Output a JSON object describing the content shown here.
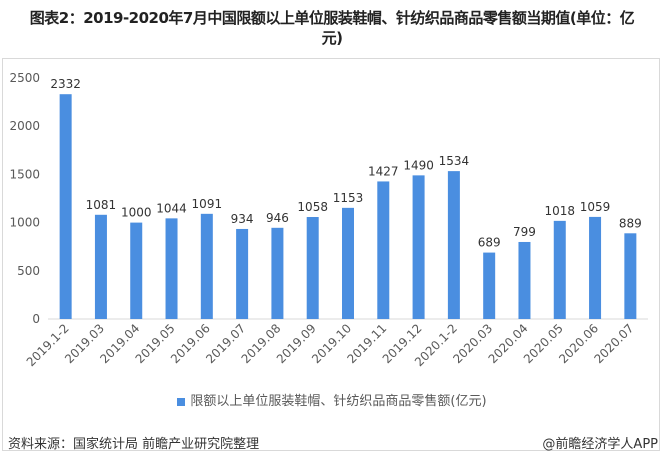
{
  "title": "图表2：2019-2020年7月中国限额以上单位服装鞋帽、针纺织品商品零售额当期值(单位：亿元)",
  "chart_data": {
    "type": "bar",
    "title": "图表2：2019-2020年7月中国限额以上单位服装鞋帽、针纺织品商品零售额当期值(单位：亿元)",
    "categories": [
      "2019.1-2",
      "2019.03",
      "2019.04",
      "2019.05",
      "2019.06",
      "2019.07",
      "2019.08",
      "2019.09",
      "2019.10",
      "2019.11",
      "2019.12",
      "2020.1-2",
      "2020.03",
      "2020.04",
      "2020.05",
      "2020.06",
      "2020.07"
    ],
    "series": [
      {
        "name": "限额以上单位服装鞋帽、针纺织品商品零售额(亿元)",
        "values": [
          2332,
          1081,
          1000,
          1044,
          1091,
          934,
          946,
          1058,
          1153,
          1427,
          1490,
          1534,
          689,
          799,
          1018,
          1059,
          889
        ],
        "color": "#4a8ee0"
      }
    ],
    "ylim": [
      0,
      2500
    ],
    "yticks": [
      0,
      500,
      1000,
      1500,
      2000,
      2500
    ],
    "grid": false,
    "legend": "bottom",
    "data_labels": true
  },
  "legend_label": "限额以上单位服装鞋帽、针纺织品商品零售额(亿元)",
  "source": "资料来源：国家统计局 前瞻产业研究院整理",
  "credit": "@前瞻经济学人APP"
}
